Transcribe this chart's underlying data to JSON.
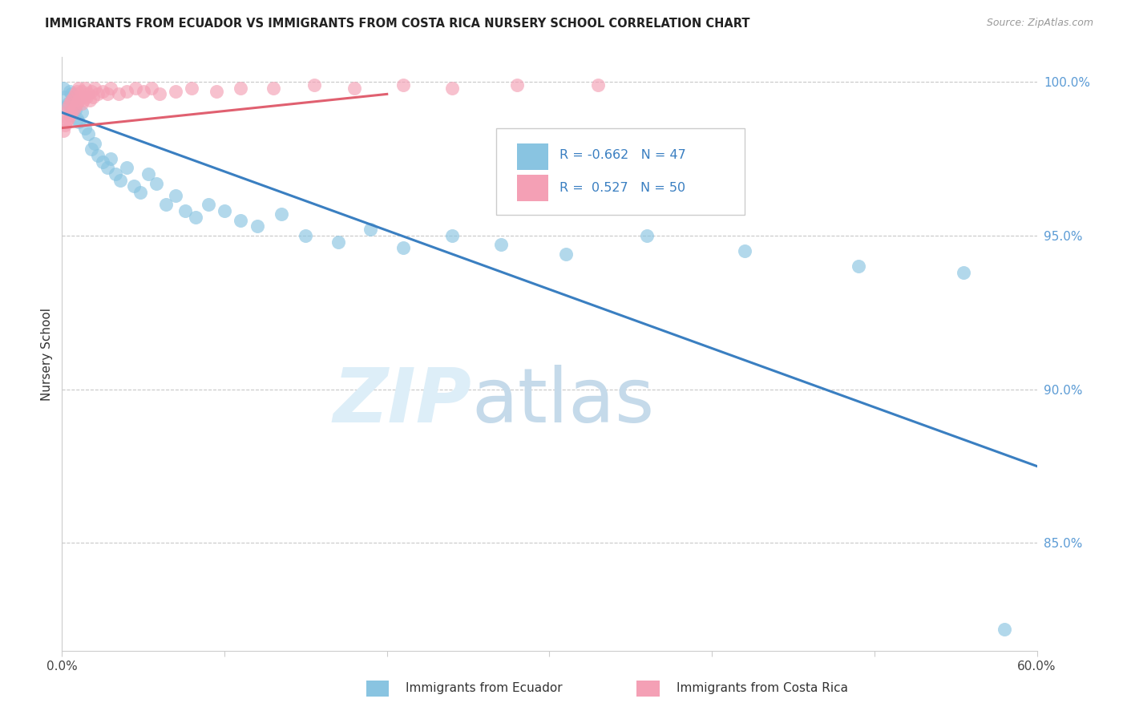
{
  "title": "IMMIGRANTS FROM ECUADOR VS IMMIGRANTS FROM COSTA RICA NURSERY SCHOOL CORRELATION CHART",
  "source": "Source: ZipAtlas.com",
  "ylabel": "Nursery School",
  "legend_ecuador": "Immigrants from Ecuador",
  "legend_costa_rica": "Immigrants from Costa Rica",
  "R_ecuador": -0.662,
  "N_ecuador": 47,
  "R_costa_rica": 0.527,
  "N_costa_rica": 50,
  "xlim": [
    0.0,
    0.6
  ],
  "ylim": [
    0.815,
    1.008
  ],
  "yticks": [
    0.85,
    0.9,
    0.95,
    1.0
  ],
  "ytick_labels": [
    "85.0%",
    "90.0%",
    "95.0%",
    "100.0%"
  ],
  "color_ecuador": "#89c4e1",
  "color_costa_rica": "#f4a0b5",
  "color_trend_ecuador": "#3a7fc1",
  "color_trend_costa_rica": "#e06070",
  "ecuador_x": [
    0.001,
    0.002,
    0.003,
    0.004,
    0.005,
    0.006,
    0.007,
    0.008,
    0.009,
    0.01,
    0.012,
    0.014,
    0.016,
    0.018,
    0.02,
    0.022,
    0.025,
    0.028,
    0.03,
    0.033,
    0.036,
    0.04,
    0.044,
    0.048,
    0.053,
    0.058,
    0.064,
    0.07,
    0.076,
    0.082,
    0.09,
    0.1,
    0.11,
    0.12,
    0.135,
    0.15,
    0.17,
    0.19,
    0.21,
    0.24,
    0.27,
    0.31,
    0.36,
    0.42,
    0.49,
    0.555,
    0.58
  ],
  "ecuador_y": [
    0.998,
    0.995,
    0.992,
    0.993,
    0.997,
    0.996,
    0.994,
    0.991,
    0.988,
    0.987,
    0.99,
    0.985,
    0.983,
    0.978,
    0.98,
    0.976,
    0.974,
    0.972,
    0.975,
    0.97,
    0.968,
    0.972,
    0.966,
    0.964,
    0.97,
    0.967,
    0.96,
    0.963,
    0.958,
    0.956,
    0.96,
    0.958,
    0.955,
    0.953,
    0.957,
    0.95,
    0.948,
    0.952,
    0.946,
    0.95,
    0.947,
    0.944,
    0.95,
    0.945,
    0.94,
    0.938,
    0.822
  ],
  "costa_rica_x": [
    0.001,
    0.002,
    0.003,
    0.003,
    0.004,
    0.004,
    0.005,
    0.005,
    0.006,
    0.006,
    0.007,
    0.007,
    0.008,
    0.008,
    0.009,
    0.009,
    0.01,
    0.01,
    0.011,
    0.012,
    0.012,
    0.013,
    0.014,
    0.015,
    0.016,
    0.017,
    0.018,
    0.019,
    0.02,
    0.022,
    0.025,
    0.028,
    0.03,
    0.035,
    0.04,
    0.045,
    0.05,
    0.055,
    0.06,
    0.07,
    0.08,
    0.095,
    0.11,
    0.13,
    0.155,
    0.18,
    0.21,
    0.24,
    0.28,
    0.33
  ],
  "costa_rica_y": [
    0.984,
    0.986,
    0.987,
    0.99,
    0.988,
    0.992,
    0.989,
    0.993,
    0.99,
    0.994,
    0.991,
    0.995,
    0.992,
    0.996,
    0.993,
    0.997,
    0.994,
    0.998,
    0.995,
    0.993,
    0.997,
    0.994,
    0.998,
    0.995,
    0.996,
    0.994,
    0.997,
    0.995,
    0.998,
    0.996,
    0.997,
    0.996,
    0.998,
    0.996,
    0.997,
    0.998,
    0.997,
    0.998,
    0.996,
    0.997,
    0.998,
    0.997,
    0.998,
    0.998,
    0.999,
    0.998,
    0.999,
    0.998,
    0.999,
    0.999
  ],
  "trend_ecu_x0": 0.0,
  "trend_ecu_y0": 0.99,
  "trend_ecu_x1": 0.6,
  "trend_ecu_y1": 0.875,
  "trend_cr_x0": 0.0,
  "trend_cr_y0": 0.985,
  "trend_cr_x1": 0.2,
  "trend_cr_y1": 0.996
}
